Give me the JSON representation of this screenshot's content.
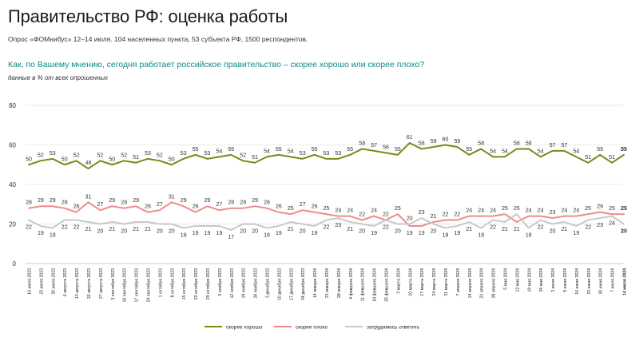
{
  "header": {
    "title": "Правительство РФ: оценка работы",
    "subtitle": "Опрос «ФОМнибус» 12–14 июля. 104 населенных пункта, 53 субъекта РФ, 1500 респондентов."
  },
  "chart_data": {
    "type": "line",
    "title": "Как, по Вашему мнению, сегодня работает российское правительство – скорее хорошо или скорее плохо?",
    "subtitle": "данные в % от всех опрошенных",
    "xlabel": "",
    "ylabel": "",
    "ylim": [
      0,
      80
    ],
    "yticks": [
      0,
      20,
      40,
      60,
      80
    ],
    "grid": true,
    "legend": "bottom",
    "categories": [
      "16 июля 2023",
      "23 июля 2023",
      "30 июля 2023",
      "6 августа 2023",
      "13 августа 2023",
      "20 августа 2023",
      "27 августа 2023",
      "3 сентября 2023",
      "10 сентября 2023",
      "17 сентября 2023",
      "24 сентября 2023",
      "1 октября 2023",
      "8 октября 2023",
      "15 октября 2023",
      "22 октября 2023",
      "29 октября 2023",
      "5 ноября 2023",
      "12 ноября 2023",
      "19 ноября 2023",
      "26 ноября 2023",
      "3 декабря 2023",
      "10 декабря 2023",
      "17 декабря 2023",
      "24 декабря 2023",
      "14 января 2024",
      "21 января 2024",
      "28 января 2024",
      "4 февраля 2024",
      "11 февраля 2024",
      "18 февраля 2024",
      "25 февраля 2024",
      "3 марта 2024",
      "10 марта 2024",
      "17 марта 2024",
      "24 марта 2024",
      "31 марта 2024",
      "7 апреля 2024",
      "14 апреля 2024",
      "21 апреля 2024",
      "28 апреля 2024",
      "5 мая 2024",
      "12 мая 2024",
      "19 мая 2024",
      "26 мая 2024",
      "2 июня 2024",
      "9 июня 2024",
      "16 июня 2024",
      "23 июня 2024",
      "30 июня 2024",
      "7 июля 2024",
      "14 июля 2024"
    ],
    "series": [
      {
        "name": "скорее хорошо",
        "color": "#7a8a16",
        "values": [
          50,
          52,
          53,
          50,
          52,
          48,
          52,
          50,
          52,
          51,
          53,
          52,
          50,
          53,
          55,
          53,
          54,
          55,
          52,
          51,
          54,
          55,
          54,
          53,
          55,
          53,
          53,
          55,
          58,
          57,
          56,
          55,
          61,
          58,
          59,
          60,
          59,
          55,
          58,
          54,
          54,
          58,
          58,
          54,
          57,
          57,
          54,
          51,
          55,
          51,
          55
        ]
      },
      {
        "name": "скорее плохо",
        "color": "#f08a8a",
        "values": [
          28,
          29,
          29,
          28,
          26,
          31,
          27,
          29,
          28,
          29,
          26,
          27,
          31,
          29,
          26,
          29,
          27,
          28,
          28,
          29,
          28,
          26,
          25,
          27,
          26,
          25,
          24,
          24,
          22,
          24,
          22,
          25,
          19,
          19,
          21,
          22,
          22,
          24,
          24,
          24,
          25,
          21,
          24,
          24,
          23,
          24,
          24,
          25,
          26,
          25,
          25
        ]
      },
      {
        "name": "затрудняюсь ответить",
        "color": "#c8c8c8",
        "values": [
          22,
          19,
          18,
          22,
          22,
          21,
          20,
          21,
          20,
          21,
          21,
          20,
          20,
          18,
          19,
          19,
          19,
          17,
          20,
          20,
          18,
          19,
          21,
          20,
          19,
          22,
          23,
          21,
          20,
          19,
          22,
          20,
          20,
          23,
          20,
          18,
          19,
          21,
          18,
          22,
          21,
          25,
          18,
          22,
          20,
          21,
          19,
          22,
          23,
          24,
          20
        ]
      }
    ]
  }
}
